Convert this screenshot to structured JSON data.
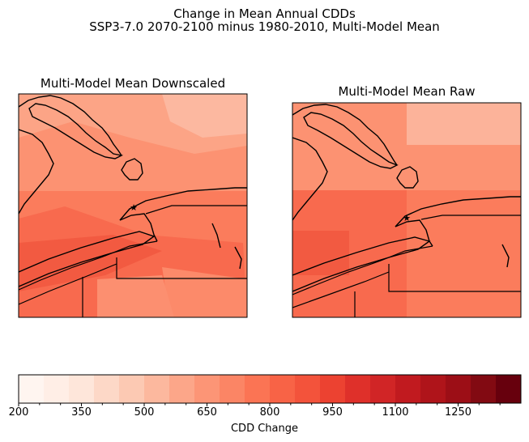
{
  "figure": {
    "title_line1": "Change in Mean Annual CDDs",
    "title_line2": "SSP3-7.0 2070-2100 minus 1980-2010, Multi-Model Mean"
  },
  "panels": [
    {
      "title": "Multi-Model Mean Downscaled"
    },
    {
      "title": "Multi-Model Mean Raw"
    }
  ],
  "colorbar": {
    "label": "CDD Change",
    "min": 200,
    "max": 1400,
    "step": 50,
    "ticks": [
      "200",
      "350",
      "500",
      "650",
      "800",
      "950",
      "1100",
      "1250"
    ],
    "colors": [
      "#fff5f0",
      "#ffeee6",
      "#fee6da",
      "#fdd8c7",
      "#fcc9b3",
      "#fcb89e",
      "#fca689",
      "#fc9576",
      "#fb8565",
      "#fb7454",
      "#f86346",
      "#f3533b",
      "#ec4231",
      "#df302a",
      "#d12526",
      "#c11a1f",
      "#af141a",
      "#9c0e16",
      "#820a12",
      "#67000d"
    ]
  },
  "map_markers": [
    {
      "name": "star-marker",
      "symbol": "★"
    }
  ]
}
